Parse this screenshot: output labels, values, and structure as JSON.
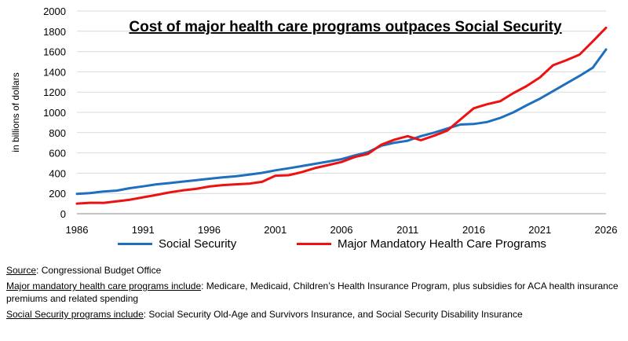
{
  "chart_data": {
    "type": "line",
    "title": "Cost of major health care programs outpaces Social Security",
    "xlabel": "",
    "ylabel": "in billions of dollars",
    "xlim": [
      1986,
      2026
    ],
    "ylim": [
      0,
      2000
    ],
    "y_ticks": [
      "0",
      "200",
      "400",
      "600",
      "800",
      "1000",
      "1200",
      "1400",
      "1600",
      "1800",
      "2000"
    ],
    "x_ticks": [
      "1986",
      "1991",
      "1996",
      "2001",
      "2006",
      "2011",
      "2016",
      "2021",
      "2026"
    ],
    "grid": "horizontal",
    "x": [
      1986,
      1987,
      1988,
      1989,
      1990,
      1991,
      1992,
      1993,
      1994,
      1995,
      1996,
      1997,
      1998,
      1999,
      2000,
      2001,
      2002,
      2003,
      2004,
      2005,
      2006,
      2007,
      2008,
      2009,
      2010,
      2011,
      2012,
      2013,
      2014,
      2015,
      2016,
      2017,
      2018,
      2019,
      2020,
      2021,
      2022,
      2023,
      2024,
      2025,
      2026
    ],
    "series": [
      {
        "name": "Social Security",
        "color": "#1f6fbf",
        "values": [
          196,
          204,
          219,
          228,
          252,
          270,
          290,
          302,
          317,
          330,
          345,
          358,
          369,
          385,
          403,
          428,
          448,
          470,
          492,
          515,
          538,
          575,
          607,
          670,
          700,
          720,
          765,
          800,
          840,
          880,
          885,
          905,
          945,
          1000,
          1070,
          1135,
          1210,
          1285,
          1360,
          1440,
          1620
        ]
      },
      {
        "name": "Major Mandatory Health Care Programs",
        "color": "#ee1111",
        "values": [
          100,
          108,
          107,
          122,
          138,
          162,
          185,
          210,
          230,
          245,
          268,
          282,
          290,
          296,
          315,
          375,
          380,
          410,
          450,
          480,
          510,
          560,
          590,
          680,
          730,
          765,
          725,
          770,
          820,
          930,
          1040,
          1080,
          1110,
          1190,
          1260,
          1345,
          1465,
          1515,
          1570,
          1700,
          1835
        ]
      }
    ]
  },
  "notes": {
    "source_label": "Source",
    "source_text": ": Congressional Budget Office",
    "health_label": "Major mandatory health care programs include",
    "health_text": ": Medicare, Medicaid, Children’s Health Insurance Program, plus subsidies for ACA health insurance premiums and related spending",
    "ss_label": "Social Security programs include",
    "ss_text": ": Social Security Old-Age and Survivors Insurance, and Social Security Disability Insurance"
  }
}
